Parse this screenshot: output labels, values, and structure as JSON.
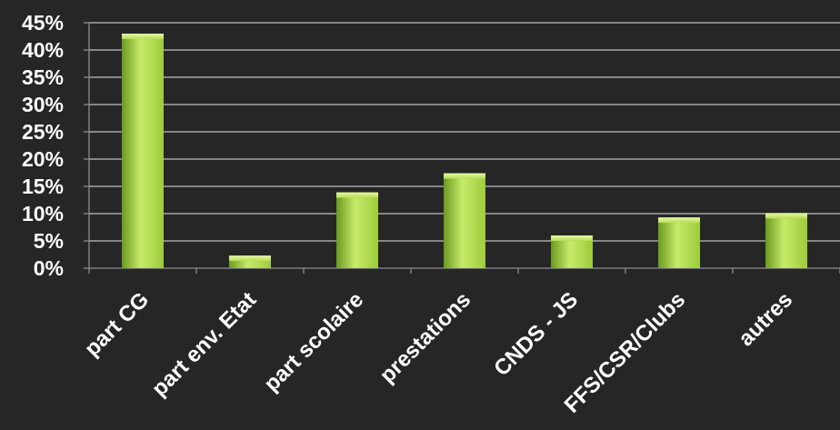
{
  "chart_data": {
    "type": "bar",
    "title": "",
    "xlabel": "",
    "ylabel": "",
    "categories": [
      "part CG",
      "part env. Etat",
      "part scolaire",
      "prestations",
      "CNDS - JS",
      "FFS/CSR/Clubs",
      "autres"
    ],
    "values": [
      43,
      2.3,
      13.9,
      17.4,
      6,
      9.3,
      10.1
    ],
    "ylim": [
      0,
      45
    ],
    "yticks": [
      0,
      5,
      10,
      15,
      20,
      25,
      30,
      35,
      40,
      45
    ],
    "ytick_labels": [
      "0%",
      "5%",
      "10%",
      "15%",
      "20%",
      "25%",
      "30%",
      "35%",
      "40%",
      "45%"
    ],
    "grid": true,
    "legend": "none",
    "colors": {
      "background": "#262626",
      "bar_light": "#c8ea6a",
      "bar_mid": "#9ccb3b",
      "bar_dark": "#6a9a20",
      "gridline": "#bfbfbf",
      "axis": "#8c8c8c",
      "text": "#ffffff"
    }
  }
}
